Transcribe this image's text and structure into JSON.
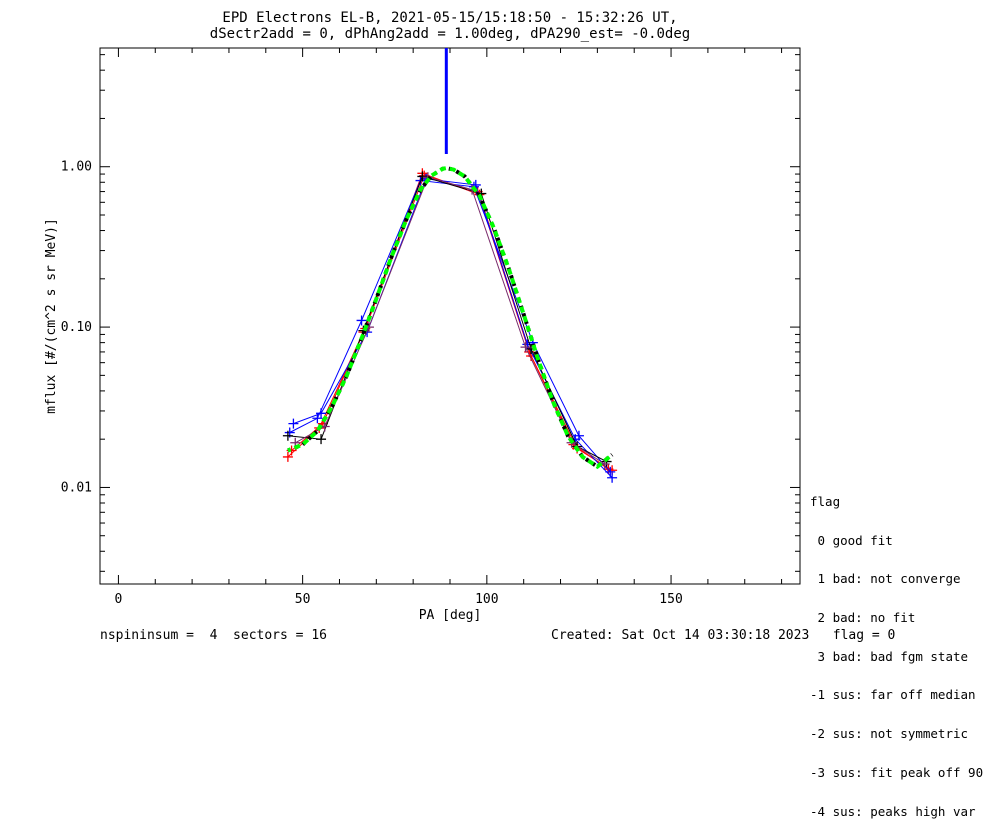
{
  "title_line1": "EPD Electrons EL-B, 2021-05-15/15:18:50 - 15:32:26 UT,",
  "title_line2": "dSectr2add = 0, dPhAng2add = 1.00deg, dPA290_est=  -0.0deg",
  "footer": {
    "left": "nspininsum =  4  sectors = 16",
    "right": "Created: Sat Oct 14 03:30:18 2023   flag = 0"
  },
  "legend": {
    "title": "flag",
    "items": [
      " 0 good fit",
      " 1 bad: not converge",
      " 2 bad: no fit",
      " 3 bad: bad fgm state",
      "-1 sus: far off median",
      "-2 sus: not symmetric",
      "-3 sus: fit peak off 90",
      "-4 sus: peaks high var"
    ]
  },
  "colors": {
    "red": "#ff0000",
    "blue": "#0000ff",
    "black": "#000000",
    "green": "#00ff00",
    "purple": "#7a2a6a"
  },
  "chart_data": {
    "type": "line",
    "title": "EPD Electrons EL-B, 2021-05-15/15:18:50 - 15:32:26 UT, dSectr2add = 0, dPhAng2add = 1.00deg, dPA290_est=  -0.0deg",
    "xlabel": "PA [deg]",
    "ylabel": "mflux [#/(cm^2 s sr MeV)]",
    "xlim": [
      -5,
      185
    ],
    "ylim": [
      0.0025,
      5.5
    ],
    "yscale": "log",
    "xticks": [
      0,
      50,
      100,
      150
    ],
    "xtick_labels": [
      "0",
      "50",
      "100",
      "150"
    ],
    "yticks": [
      0.01,
      0.1,
      1.0
    ],
    "ytick_labels": [
      "0.01",
      "0.10",
      "1.00"
    ],
    "vertical_line": {
      "x": 89,
      "y_from": 1.2,
      "y_to": 5.5
    },
    "series": [
      {
        "color": "red",
        "marker": "+",
        "x": [
          46,
          54.5,
          66.5,
          82.5,
          98,
          112,
          124.5,
          134
        ],
        "y": [
          0.0155,
          0.0235,
          0.093,
          0.91,
          0.67,
          0.066,
          0.0175,
          0.0128
        ]
      },
      {
        "color": "red",
        "marker": "+",
        "x": [
          47,
          55.5,
          67,
          83,
          97.5,
          111.5,
          123.5,
          133
        ],
        "y": [
          0.017,
          0.025,
          0.098,
          0.88,
          0.7,
          0.07,
          0.0185,
          0.013
        ]
      },
      {
        "color": "blue",
        "marker": "+",
        "x": [
          47.5,
          55,
          67.5,
          83.5,
          97,
          111,
          124,
          134
        ],
        "y": [
          0.025,
          0.029,
          0.093,
          0.84,
          0.77,
          0.078,
          0.02,
          0.0115
        ]
      },
      {
        "color": "blue",
        "marker": "+",
        "x": [
          46.5,
          54,
          66,
          82,
          96.5,
          112.5,
          125,
          133.5
        ],
        "y": [
          0.022,
          0.027,
          0.11,
          0.82,
          0.75,
          0.08,
          0.021,
          0.0125
        ]
      },
      {
        "color": "black",
        "marker": "+",
        "x": [
          46,
          55,
          66.5,
          82.5,
          98.5,
          112,
          124.5,
          132.5
        ],
        "y": [
          0.021,
          0.02,
          0.095,
          0.87,
          0.68,
          0.073,
          0.018,
          0.0145
        ]
      },
      {
        "color": "purple",
        "marker": "+",
        "x": [
          48,
          56,
          68,
          84,
          96,
          110.5,
          123,
          132
        ],
        "y": [
          0.019,
          0.024,
          0.1,
          0.86,
          0.72,
          0.075,
          0.019,
          0.014
        ]
      }
    ],
    "fit": {
      "x": [
        46,
        50,
        54,
        58,
        62,
        66,
        70,
        74,
        78,
        82,
        85,
        88,
        89,
        91,
        94,
        98,
        102,
        106,
        110,
        114,
        118,
        122,
        126,
        130,
        134
      ],
      "y": [
        0.017,
        0.0185,
        0.0225,
        0.032,
        0.05,
        0.085,
        0.15,
        0.27,
        0.46,
        0.72,
        0.88,
        0.97,
        0.98,
        0.96,
        0.87,
        0.66,
        0.41,
        0.23,
        0.12,
        0.062,
        0.034,
        0.021,
        0.0155,
        0.0135,
        0.016
      ]
    }
  }
}
